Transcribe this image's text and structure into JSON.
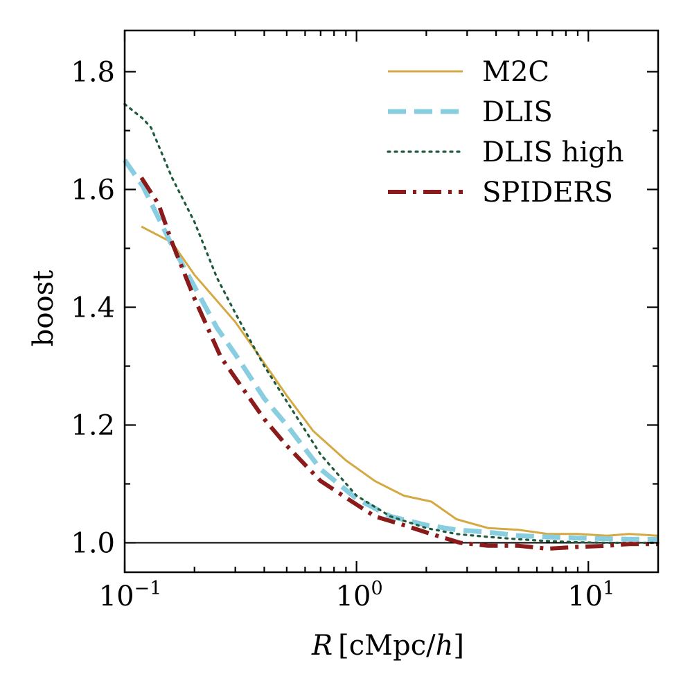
{
  "chart_data": {
    "type": "line",
    "title": "",
    "xlabel": "R [cMpc/h]",
    "xlabel_parts": {
      "var": "R",
      "unit_open": "[cMpc/",
      "unit_var": "h",
      "unit_close": "]"
    },
    "ylabel": "boost",
    "xscale": "log",
    "xlim": [
      0.1,
      20
    ],
    "ylim": [
      0.95,
      1.87
    ],
    "reference_line": {
      "y": 1.0,
      "color": "#000000"
    },
    "x_ticks_major": [
      {
        "value": 0.1,
        "base": "10",
        "exp": "−1"
      },
      {
        "value": 1,
        "base": "10",
        "exp": "0"
      },
      {
        "value": 10,
        "base": "10",
        "exp": "1"
      }
    ],
    "y_ticks": [
      {
        "value": 1.0,
        "label": "1.0"
      },
      {
        "value": 1.2,
        "label": "1.2"
      },
      {
        "value": 1.4,
        "label": "1.4"
      },
      {
        "value": 1.6,
        "label": "1.6"
      },
      {
        "value": 1.8,
        "label": "1.8"
      }
    ],
    "y_minor_step": 0.1,
    "legend": {
      "placement": "top-right"
    },
    "series": [
      {
        "name": "M2C",
        "color": "#d4a843",
        "style": "solid",
        "x": [
          0.118,
          0.16,
          0.2,
          0.3,
          0.4,
          0.5,
          0.65,
          0.9,
          1.2,
          1.6,
          2.1,
          2.7,
          3.7,
          5,
          6.7,
          9,
          12,
          15,
          20
        ],
        "y": [
          1.537,
          1.51,
          1.455,
          1.375,
          1.305,
          1.25,
          1.19,
          1.14,
          1.105,
          1.08,
          1.07,
          1.04,
          1.025,
          1.022,
          1.015,
          1.015,
          1.012,
          1.015,
          1.012
        ]
      },
      {
        "name": "DLIS",
        "color": "#89cde0",
        "style": "dashed",
        "x": [
          0.1,
          0.12,
          0.16,
          0.2,
          0.25,
          0.3,
          0.4,
          0.5,
          0.7,
          1,
          1.4,
          2,
          2.7,
          3.7,
          5,
          6.7,
          9,
          12,
          15,
          20
        ],
        "y": [
          1.65,
          1.605,
          1.505,
          1.435,
          1.365,
          1.32,
          1.245,
          1.2,
          1.125,
          1.075,
          1.045,
          1.03,
          1.022,
          1.018,
          1.012,
          1.01,
          1.008,
          1.007,
          1.006,
          1.006
        ]
      },
      {
        "name": "DLIS high",
        "color": "#1f5a3c",
        "style": "dotted",
        "x": [
          0.1,
          0.12,
          0.13,
          0.16,
          0.2,
          0.25,
          0.3,
          0.4,
          0.5,
          0.7,
          1,
          1.4,
          2,
          2.7,
          3.7,
          5,
          6.7,
          9,
          12,
          15,
          20
        ],
        "y": [
          1.745,
          1.72,
          1.705,
          1.62,
          1.545,
          1.45,
          1.39,
          1.3,
          1.24,
          1.15,
          1.08,
          1.045,
          1.025,
          1.015,
          1.01,
          1.006,
          1.003,
          1.001,
          1.0,
          1.0,
          1.0
        ]
      },
      {
        "name": "SPIDERS",
        "color": "#8b1a1a",
        "style": "dashdot",
        "x": [
          0.118,
          0.14,
          0.16,
          0.2,
          0.26,
          0.3,
          0.4,
          0.5,
          0.7,
          1,
          1.2,
          1.6,
          2.1,
          2.8,
          3.7,
          5,
          6.7,
          9,
          12,
          15,
          20
        ],
        "y": [
          1.62,
          1.575,
          1.51,
          1.415,
          1.315,
          1.28,
          1.21,
          1.165,
          1.105,
          1.065,
          1.045,
          1.03,
          1.015,
          1.0,
          0.995,
          0.995,
          0.99,
          0.993,
          0.995,
          0.998,
          0.998
        ]
      }
    ]
  }
}
